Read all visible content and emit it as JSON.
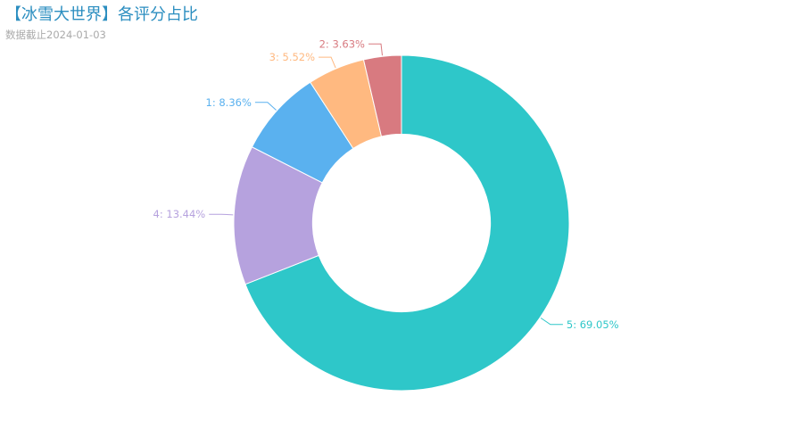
{
  "chart_data": {
    "type": "pie",
    "title": "【冰雪大世界】各评分占比",
    "subtitle": "数据截止2024-01-03",
    "slices": [
      {
        "name": "5",
        "value": 69.05,
        "label": "5: 69.05%",
        "color": "#2ec7c9"
      },
      {
        "name": "4",
        "value": 13.44,
        "label": "4: 13.44%",
        "color": "#b6a2de"
      },
      {
        "name": "1",
        "value": 8.36,
        "label": "1: 8.36%",
        "color": "#5ab1ef"
      },
      {
        "name": "3",
        "value": 5.52,
        "label": "3: 5.52%",
        "color": "#ffb980"
      },
      {
        "name": "2",
        "value": 3.63,
        "label": "2: 3.63%",
        "color": "#d87a80"
      }
    ],
    "inner_radius_ratio": 0.53,
    "start_angle": "top",
    "direction": "clockwise",
    "labels": "outside"
  }
}
